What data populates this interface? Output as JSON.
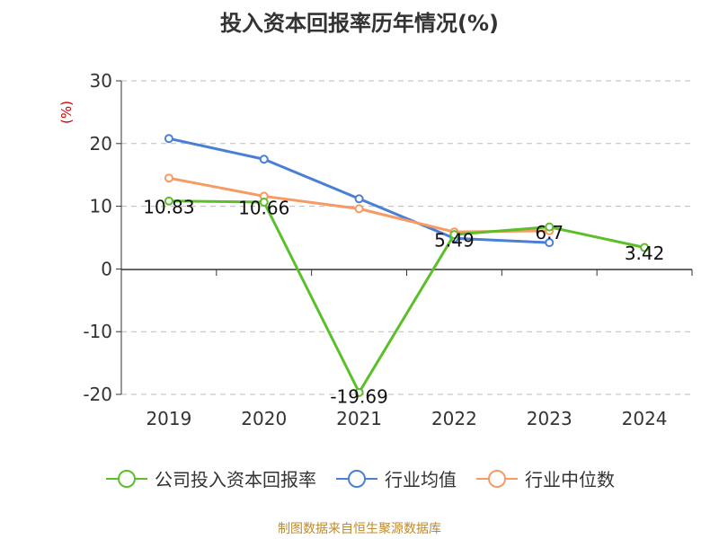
{
  "title": "投入资本回报率历年情况(%)",
  "source": "制图数据来自恒生聚源数据库",
  "colors": {
    "company": "#5cbf2a",
    "industry_avg": "#4a7fd6",
    "industry_median": "#f79a63",
    "axis": "#333333",
    "grid": "#bbbbbb",
    "unit": "#cc0000"
  },
  "chart_data": {
    "type": "line",
    "unit_label": "(%)",
    "categories": [
      "2019",
      "2020",
      "2021",
      "2022",
      "2023",
      "2024"
    ],
    "ylim": [
      -20,
      30
    ],
    "yticks": [
      30,
      20,
      10,
      0,
      -10,
      -20
    ],
    "grid": true,
    "legend_position": "bottom",
    "series": [
      {
        "name": "公司投入资本回报率",
        "color": "#5cbf2a",
        "values": [
          10.83,
          10.66,
          -19.69,
          5.49,
          6.7,
          3.42
        ],
        "labels": [
          "10.83",
          "10.66",
          "-19.69",
          "5.49",
          "6.7",
          "3.42"
        ]
      },
      {
        "name": "行业均值",
        "color": "#4a7fd6",
        "values": [
          20.8,
          17.5,
          11.2,
          4.9,
          4.2,
          null
        ]
      },
      {
        "name": "行业中位数",
        "color": "#f79a63",
        "values": [
          14.5,
          11.6,
          9.6,
          5.9,
          6.1,
          null
        ]
      }
    ]
  }
}
